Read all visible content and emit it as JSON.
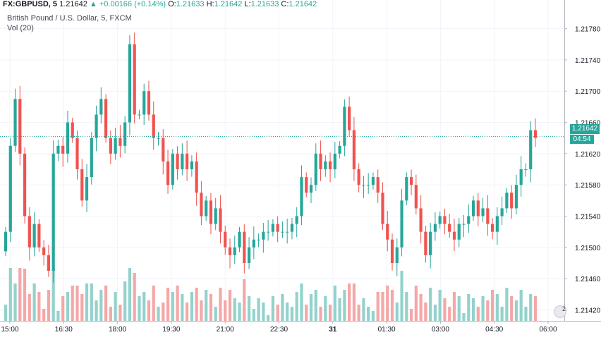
{
  "header": {
    "symbol": "FX:GBPUSD, 5",
    "last": "1.21642",
    "change": "▲ +0.00166 (+0.14%)",
    "o_label": "O:",
    "o_value": "1.21633",
    "h_label": "H:",
    "h_value": "1.21642",
    "l_label": "L:",
    "l_value": "1.21633",
    "c_label": "C:",
    "c_value": "1.21642"
  },
  "subtitle": "British Pound / U.S. Dollar, 5, FXCM",
  "volume_label": "Vol (20)",
  "last_price_tag": "1.21642",
  "countdown_tag": "04:54",
  "badge_count": "2",
  "colors": {
    "up": "#26a69a",
    "down": "#ef5350",
    "up_vol": "#93d2cc",
    "down_vol": "#f4a7a6"
  },
  "chart_data": {
    "type": "candlestick",
    "title": "British Pound / U.S. Dollar, 5, FXCM",
    "y_ticks": [
      "1.21780",
      "1.21740",
      "1.21700",
      "1.21660",
      "1.21620",
      "1.21580",
      "1.21540",
      "1.21500",
      "1.21460",
      "1.21420"
    ],
    "x_ticks": [
      "15:00",
      "16:30",
      "18:00",
      "19:30",
      "21:00",
      "22:30",
      "31",
      "01:30",
      "03:00",
      "04:30",
      "06:00"
    ],
    "ylim": [
      1.21406,
      1.21804
    ],
    "last_price": 1.21642,
    "closes": [
      1.2152,
      1.2163,
      1.2169,
      1.2162,
      1.2154,
      1.215,
      1.2153,
      1.215,
      1.2149,
      1.2147,
      1.2162,
      1.2163,
      1.2162,
      1.2166,
      1.2164,
      1.216,
      1.2156,
      1.2159,
      1.2164,
      1.2167,
      1.2169,
      1.2164,
      1.2162,
      1.2164,
      1.2163,
      1.2166,
      1.2176,
      1.2167,
      1.2167,
      1.217,
      1.2167,
      1.2164,
      1.2164,
      1.2161,
      1.2158,
      1.2162,
      1.216,
      1.2162,
      1.216,
      1.2161,
      1.2157,
      1.2154,
      1.2156,
      1.2153,
      1.2155,
      1.2152,
      1.215,
      1.2149,
      1.215,
      1.2152,
      1.2148,
      1.215,
      1.2151,
      1.2151,
      1.2152,
      1.2152,
      1.2153,
      1.2152,
      1.2152,
      1.2152,
      1.2153,
      1.2154,
      1.2159,
      1.2157,
      1.2158,
      1.2162,
      1.216,
      1.2161,
      1.216,
      1.2162,
      1.2163,
      1.2168,
      1.2165,
      1.216,
      1.2158,
      1.2158,
      1.2158,
      1.2159,
      1.2157,
      1.2153,
      1.2151,
      1.2148,
      1.215,
      1.2156,
      1.2159,
      1.2158,
      1.2155,
      1.2152,
      1.2149,
      1.2152,
      1.2153,
      1.2154,
      1.2153,
      1.2152,
      1.2151,
      1.2153,
      1.2153,
      1.2154,
      1.2156,
      1.2154,
      1.2155,
      1.2153,
      1.2152,
      1.2154,
      1.2155,
      1.2157,
      1.2155,
      1.2158,
      1.216,
      1.216,
      1.2165,
      1.2164
    ]
  }
}
